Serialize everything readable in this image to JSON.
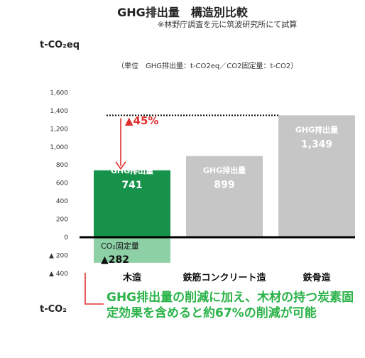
{
  "chart_data": {
    "type": "bar",
    "title": "GHG排出量　構造別比較",
    "subtitle": "※林野庁調査を元に筑波研究所にて試算",
    "unit_note": "（単位　GHG排出量：t-CO2eq／CO2固定量：t-CO2）",
    "y_unit_top": "t-CO₂eq",
    "y_unit_bottom": "t-CO₂",
    "ylim": [
      -400,
      1600
    ],
    "y_ticks": [
      1600,
      1400,
      1200,
      1000,
      800,
      600,
      400,
      200,
      0,
      -200,
      -400
    ],
    "y_tick_labels": [
      "1,600",
      "1,400",
      "1,200",
      "1,000",
      "800",
      "600",
      "400",
      "200",
      "0",
      "▲ 200",
      "▲ 400"
    ],
    "grid": false,
    "categories": [
      "木造",
      "鉄筋コンクリート造",
      "鉄骨造"
    ],
    "series": [
      {
        "name": "GHG排出量",
        "values": [
          741,
          899,
          1349
        ],
        "labels": [
          "GHG排出量",
          "GHG排出量",
          "GHG排出量"
        ],
        "value_labels": [
          "741",
          "899",
          "1,349"
        ],
        "colors": [
          "#16924a",
          "#c6c6c6",
          "#c6c6c6"
        ]
      },
      {
        "name": "CO₂固定量",
        "values": [
          -282,
          null,
          null
        ],
        "labels": [
          "CO₂固定量"
        ],
        "value_labels": [
          "▲282"
        ],
        "colors": [
          "#8dd0a6"
        ]
      }
    ],
    "reference_line": {
      "value": 1349
    },
    "annotation": {
      "text": "▲45%",
      "color": "#e03030"
    }
  },
  "conclusion": "GHG排出量の削減に加え、木材の持つ炭素固定効果を含めると約67%の削減が可能",
  "colors": {
    "accent": "#e03030",
    "conclusion_text": "#2cb34a"
  }
}
